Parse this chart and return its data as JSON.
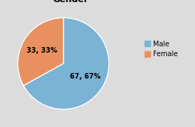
{
  "labels": [
    "Male",
    "Female"
  ],
  "values": [
    67.67,
    33.33
  ],
  "colors": [
    "#7ab3d4",
    "#e89060"
  ],
  "autopct_labels": [
    "67, 67%",
    "33, 33%"
  ],
  "startangle": 90,
  "background_color": "#dcdcdc",
  "legend_labels": [
    "Male",
    "Female"
  ],
  "title_fontsize": 9,
  "autopct_fontsize": 7,
  "legend_fontsize": 7
}
